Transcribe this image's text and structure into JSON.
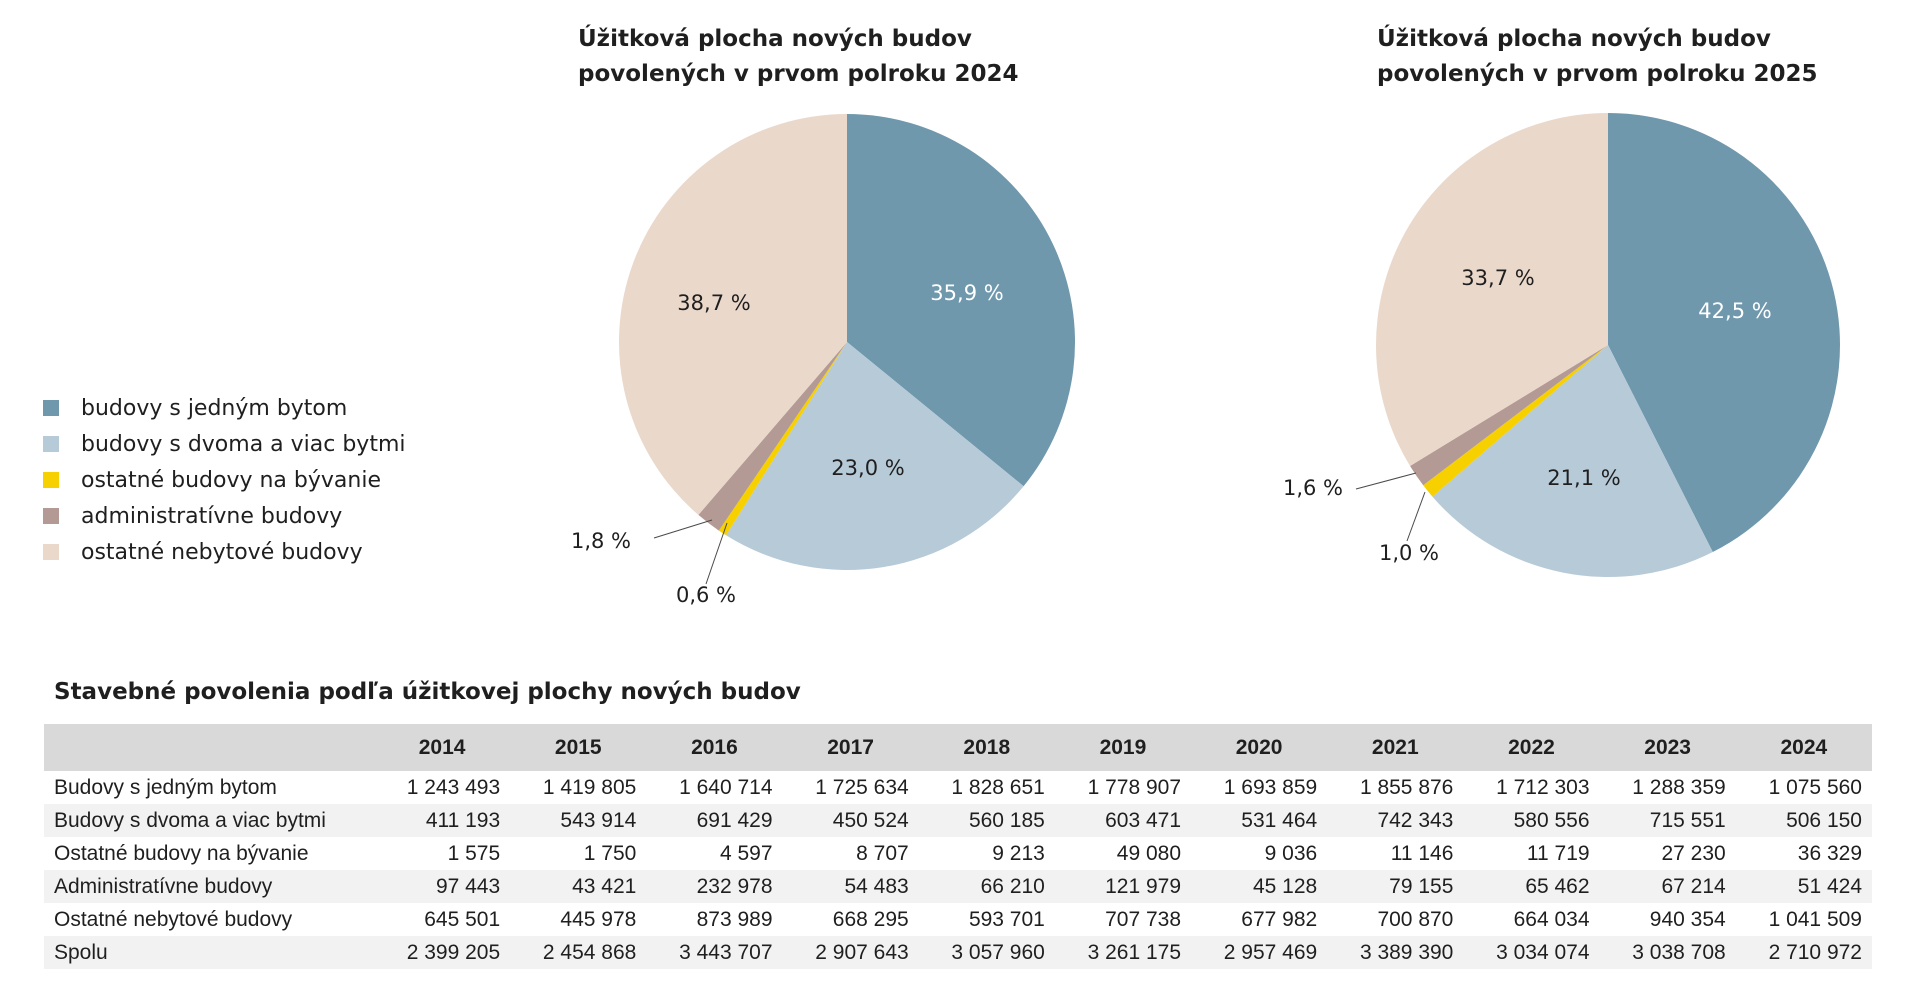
{
  "legend": [
    {
      "label": "budovy s jedným bytom",
      "color": "#6f98ad"
    },
    {
      "label": "budovy s dvoma a viac bytmi",
      "color": "#b7cad7"
    },
    {
      "label": "ostatné budovy na bývanie",
      "color": "#f7d000"
    },
    {
      "label": "administratívne budovy",
      "color": "#b49a94"
    },
    {
      "label": "ostatné nebytové budovy",
      "color": "#ead8cb"
    }
  ],
  "chart_data": [
    {
      "type": "pie",
      "title_lines": [
        "Úžitková plocha nových budov",
        "povolených v prvom polroku 2024"
      ],
      "categories": [
        "budovy s jedným bytom",
        "budovy s dvoma a viac bytmi",
        "ostatné budovy na bývanie",
        "administratívne budovy",
        "ostatné nebytové budovy"
      ],
      "values": [
        35.9,
        23.0,
        0.6,
        1.8,
        38.7
      ],
      "labels": [
        "35,9 %",
        "23,0 %",
        "0,6 %",
        "1,8 %",
        "38,7 %"
      ]
    },
    {
      "type": "pie",
      "title_lines": [
        "Úžitková plocha nových budov",
        "povolených v prvom polroku 2025"
      ],
      "categories": [
        "budovy s jedným bytom",
        "budovy s dvoma a viac bytmi",
        "ostatné budovy na bývanie",
        "administratívne budovy",
        "ostatné nebytové budovy"
      ],
      "values": [
        42.5,
        21.1,
        1.0,
        1.6,
        33.7
      ],
      "labels": [
        "42,5 %",
        "21,1 %",
        "1,0 %",
        "1,6 %",
        "33,7 %"
      ]
    }
  ],
  "table": {
    "title": "Stavebné povolenia podľa úžitkovej plochy nových budov",
    "columns": [
      "",
      "2014",
      "2015",
      "2016",
      "2017",
      "2018",
      "2019",
      "2020",
      "2021",
      "2022",
      "2023",
      "2024"
    ],
    "rows": [
      [
        "Budovy s jedným bytom",
        "1 243 493",
        "1 419 805",
        "1 640 714",
        "1 725 634",
        "1 828 651",
        "1 778 907",
        "1 693 859",
        "1 855 876",
        "1 712 303",
        "1 288 359",
        "1 075 560"
      ],
      [
        "Budovy s dvoma a viac bytmi",
        "411 193",
        "543 914",
        "691 429",
        "450 524",
        "560 185",
        "603 471",
        "531 464",
        "742 343",
        "580 556",
        "715 551",
        "506 150"
      ],
      [
        "Ostatné budovy na bývanie",
        "1 575",
        "1 750",
        "4 597",
        "8 707",
        "9 213",
        "49 080",
        "9 036",
        "11 146",
        "11 719",
        "27 230",
        "36 329"
      ],
      [
        "Administratívne budovy",
        "97 443",
        "43 421",
        "232 978",
        "54 483",
        "66 210",
        "121 979",
        "45 128",
        "79 155",
        "65 462",
        "67 214",
        "51 424"
      ],
      [
        "Ostatné nebytové budovy",
        "645 501",
        "445 978",
        "873 989",
        "668 295",
        "593 701",
        "707 738",
        "677 982",
        "700 870",
        "664 034",
        "940 354",
        "1 041 509"
      ],
      [
        "Spolu",
        "2 399 205",
        "2 454 868",
        "3 443 707",
        "2 907 643",
        "3 057 960",
        "3 261 175",
        "2 957 469",
        "3 389 390",
        "3 034 074",
        "3 038 708",
        "2 710 972"
      ]
    ]
  }
}
